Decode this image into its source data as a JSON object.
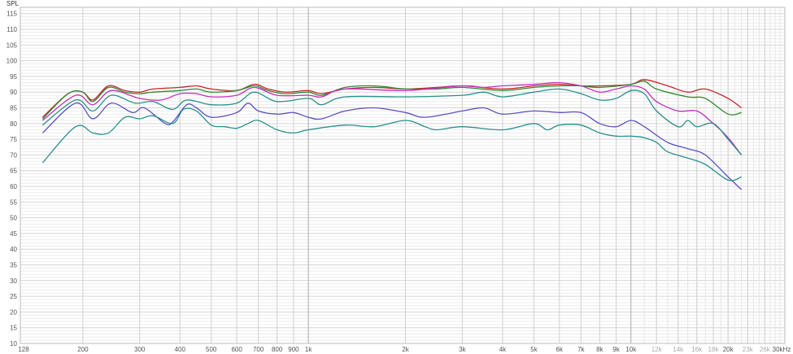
{
  "chart_data": {
    "type": "line",
    "ylabel": "SPL",
    "xscale": "log",
    "xlim": [
      128,
      30000
    ],
    "ylim": [
      10,
      117
    ],
    "grid": true,
    "x_ticks": [
      {
        "value": 128,
        "label": "128",
        "major": true
      },
      {
        "value": 200,
        "label": "200",
        "major": true
      },
      {
        "value": 300,
        "label": "300",
        "major": true
      },
      {
        "value": 400,
        "label": "400",
        "major": true
      },
      {
        "value": 500,
        "label": "500",
        "major": true
      },
      {
        "value": 600,
        "label": "600",
        "major": true
      },
      {
        "value": 700,
        "label": "700",
        "major": true
      },
      {
        "value": 800,
        "label": "800",
        "major": true
      },
      {
        "value": 900,
        "label": "900",
        "major": true
      },
      {
        "value": 1000,
        "label": "1k",
        "major": true
      },
      {
        "value": 2000,
        "label": "2k",
        "major": true
      },
      {
        "value": 3000,
        "label": "3k",
        "major": true
      },
      {
        "value": 4000,
        "label": "4k",
        "major": true
      },
      {
        "value": 5000,
        "label": "5k",
        "major": true
      },
      {
        "value": 6000,
        "label": "6k",
        "major": true
      },
      {
        "value": 7000,
        "label": "7k",
        "major": true
      },
      {
        "value": 8000,
        "label": "8k",
        "major": true
      },
      {
        "value": 9000,
        "label": "9k",
        "major": true
      },
      {
        "value": 10000,
        "label": "10k",
        "major": true
      },
      {
        "value": 12000,
        "label": "12k",
        "major": false
      },
      {
        "value": 14000,
        "label": "14k",
        "major": false
      },
      {
        "value": 16000,
        "label": "16k",
        "major": false
      },
      {
        "value": 18000,
        "label": "18k",
        "major": false
      },
      {
        "value": 20000,
        "label": "20k",
        "major": true
      },
      {
        "value": 23000,
        "label": "23k",
        "major": false
      },
      {
        "value": 26000,
        "label": "26k",
        "major": false
      },
      {
        "value": 30000,
        "label": "30kHz",
        "major": true
      }
    ],
    "y_ticks": [
      10,
      15,
      20,
      25,
      30,
      35,
      40,
      45,
      50,
      55,
      60,
      65,
      70,
      75,
      80,
      85,
      90,
      95,
      100,
      105,
      110,
      115
    ],
    "y_major_ticks": [
      10,
      100,
      110
    ],
    "series": [
      {
        "color": "#c42828",
        "x": [
          150,
          180,
          200,
          215,
          240,
          270,
          300,
          330,
          400,
          450,
          500,
          600,
          680,
          750,
          850,
          1000,
          1100,
          1300,
          1600,
          2000,
          2500,
          3000,
          4000,
          5000,
          6000,
          7000,
          8000,
          10000,
          11000,
          13000,
          15000,
          17000,
          20000,
          22000
        ],
        "y": [
          82,
          89.5,
          90,
          87.5,
          92,
          90.5,
          90,
          91,
          91.5,
          92,
          91,
          90.5,
          92.5,
          91,
          90,
          90.5,
          89.5,
          91,
          91.5,
          91,
          91.5,
          92,
          91,
          92,
          92.5,
          92,
          92,
          92.5,
          94,
          92,
          90,
          91,
          88,
          85
        ]
      },
      {
        "color": "#2f8a2f",
        "x": [
          150,
          180,
          200,
          215,
          240,
          270,
          300,
          330,
          400,
          450,
          500,
          600,
          680,
          750,
          850,
          1000,
          1100,
          1300,
          1600,
          2000,
          2500,
          3000,
          4000,
          5000,
          6000,
          7000,
          8000,
          10000,
          11000,
          12000,
          15000,
          17000,
          20000,
          22000
        ],
        "y": [
          81.5,
          89.5,
          90,
          87,
          91.5,
          90,
          89.5,
          90,
          90.5,
          91,
          90,
          90.5,
          92,
          90.5,
          89.5,
          90,
          89,
          91.5,
          92,
          91,
          91,
          91.5,
          90.5,
          91.5,
          92,
          92,
          91.5,
          92.5,
          93.5,
          91,
          88.5,
          88,
          83,
          83.5
        ]
      },
      {
        "color": "#c030c0",
        "x": [
          150,
          190,
          215,
          245,
          300,
          350,
          400,
          450,
          500,
          600,
          680,
          800,
          1000,
          1100,
          1300,
          2000,
          3000,
          3500,
          4000,
          5000,
          6000,
          7000,
          8000,
          9000,
          10000,
          11000,
          12000,
          14000,
          16000,
          18000,
          20000,
          22000
        ],
        "y": [
          81,
          89,
          86,
          90.5,
          88,
          87.5,
          89.5,
          89.5,
          88.5,
          89,
          91.5,
          89,
          89,
          88.5,
          91,
          90.5,
          92,
          91.5,
          92,
          92.5,
          93,
          92,
          90,
          91,
          92,
          91,
          87,
          84,
          84,
          80,
          75.5,
          70
        ]
      },
      {
        "color": "#2a9088",
        "x": [
          150,
          190,
          215,
          245,
          290,
          330,
          380,
          420,
          500,
          600,
          680,
          800,
          1000,
          1100,
          1300,
          2000,
          3000,
          3500,
          4000,
          5000,
          6000,
          7000,
          8000,
          9000,
          10000,
          11000,
          12000,
          14000,
          15000,
          16000,
          18000,
          20000,
          22000
        ],
        "y": [
          79.5,
          87.5,
          84,
          89,
          86.5,
          87,
          84.5,
          87.5,
          86,
          86.5,
          90,
          87,
          88,
          86,
          88.5,
          88.5,
          89,
          90,
          88.5,
          90,
          91,
          89.5,
          87.5,
          88,
          90.5,
          89.5,
          84,
          79,
          81,
          79,
          80,
          75,
          70
        ]
      },
      {
        "color": "#5a50c0",
        "x": [
          150,
          190,
          215,
          245,
          285,
          310,
          360,
          380,
          420,
          450,
          500,
          600,
          650,
          700,
          800,
          900,
          1000,
          1100,
          1300,
          1600,
          2000,
          2300,
          3000,
          3500,
          4000,
          5000,
          6000,
          7000,
          8000,
          9000,
          10000,
          11000,
          13000,
          15000,
          17000,
          20000,
          22000
        ],
        "y": [
          77,
          86.5,
          81.5,
          86.5,
          83.5,
          85,
          80,
          80.5,
          86,
          85,
          82,
          83.5,
          86.5,
          84,
          83,
          83.5,
          82,
          81.5,
          84,
          85,
          83.5,
          82,
          84,
          85,
          83,
          84,
          83.5,
          83.5,
          80,
          79,
          81,
          79,
          74,
          72,
          70,
          63,
          59
        ]
      },
      {
        "color": "#2a8f8f",
        "x": [
          150,
          190,
          215,
          240,
          270,
          300,
          330,
          380,
          410,
          450,
          500,
          550,
          600,
          650,
          700,
          800,
          900,
          1000,
          1300,
          1600,
          2000,
          2300,
          2500,
          3000,
          4000,
          5000,
          5500,
          6000,
          7000,
          8000,
          9000,
          10000,
          11000,
          12000,
          13000,
          15000,
          17000,
          20000,
          22000
        ],
        "y": [
          67.5,
          79,
          77,
          77,
          82,
          81.5,
          82.5,
          80,
          84.5,
          84,
          79.5,
          79,
          78.5,
          80,
          81,
          78,
          77,
          78,
          79.5,
          79,
          81,
          79,
          78,
          79,
          78,
          80,
          78,
          79.5,
          79.5,
          77,
          76,
          76,
          75.5,
          74,
          71,
          69,
          67,
          62,
          63
        ]
      }
    ]
  }
}
